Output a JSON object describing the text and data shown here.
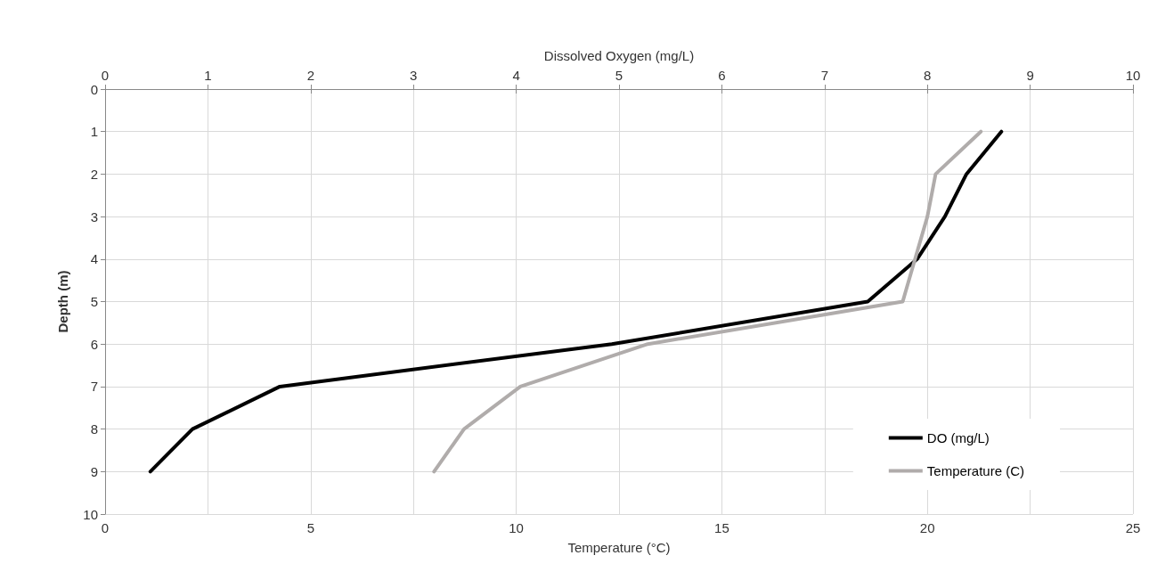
{
  "chart_data": {
    "type": "line",
    "xlabel": "Temperature (°C)",
    "x2label": "Dissolved Oxygen (mg/L)",
    "ylabel": "Depth (m)",
    "xlim": [
      0,
      25
    ],
    "xticks": [
      0,
      5,
      10,
      15,
      20,
      25
    ],
    "x2lim": [
      0,
      10
    ],
    "x2ticks": [
      0,
      1,
      2,
      3,
      4,
      5,
      6,
      7,
      8,
      9,
      10
    ],
    "ylim": [
      10,
      0
    ],
    "yticks": [
      0,
      1,
      2,
      3,
      4,
      5,
      6,
      7,
      8,
      9,
      10
    ],
    "grid": true,
    "legend": "bottom right",
    "marker": "none",
    "line_style": "solid",
    "series": [
      {
        "name": "DO (mg/L)",
        "color": "#000000",
        "axis": "x2",
        "x": [
          8.72,
          8.38,
          8.17,
          7.9,
          7.42,
          4.93,
          1.7,
          0.85,
          0.44
        ],
        "values": [
          1,
          2,
          3,
          4,
          5,
          6,
          7,
          8,
          9
        ]
      },
      {
        "name": "Temperature (C)",
        "color": "#b0acab",
        "x": [
          21.3,
          20.2,
          20.0,
          19.7,
          19.4,
          13.2,
          10.1,
          8.73,
          8.0
        ],
        "values": [
          1,
          2,
          3,
          4,
          5,
          6,
          7,
          8,
          9
        ]
      }
    ]
  }
}
